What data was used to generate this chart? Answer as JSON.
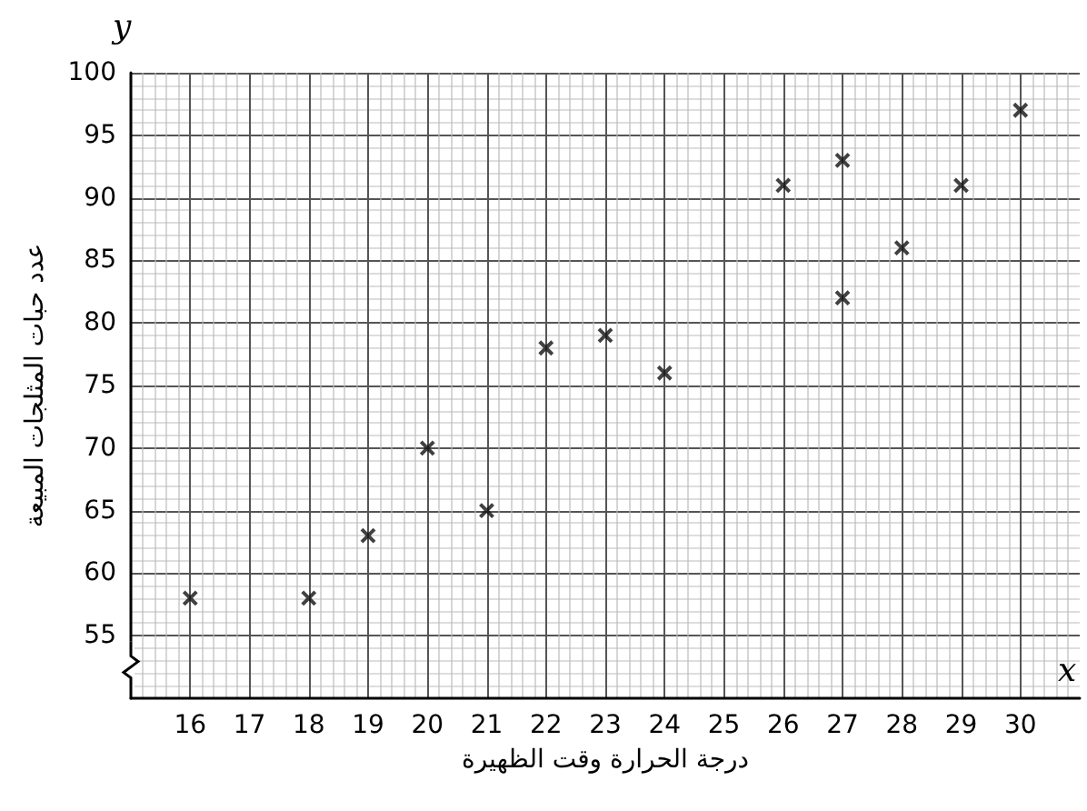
{
  "chart_data": {
    "type": "scatter",
    "xlabel": "درجة الحرارة وقت الظهيرة",
    "ylabel": "عدد حبات المثلجات المبيعة",
    "annotations": [
      "y",
      "x"
    ],
    "x": [
      16,
      18,
      19,
      20,
      21,
      22,
      23,
      24,
      26,
      27,
      27,
      28,
      29,
      30
    ],
    "series": [
      {
        "color": "#111111",
        "values": [
          58,
          58,
          63,
          70,
          65,
          78,
          79,
          76,
          91,
          93,
          82,
          86,
          91,
          97
        ]
      }
    ],
    "xlim": [
      15,
      31
    ],
    "xticks": [
      16,
      17,
      18,
      19,
      20,
      21,
      22,
      23,
      24,
      25,
      26,
      27,
      28,
      29,
      30
    ],
    "ylim": [
      50,
      100
    ],
    "yticks": [
      55,
      60,
      65,
      70,
      75,
      80,
      85,
      90,
      95,
      100
    ],
    "grid": true,
    "marker": "cross"
  }
}
